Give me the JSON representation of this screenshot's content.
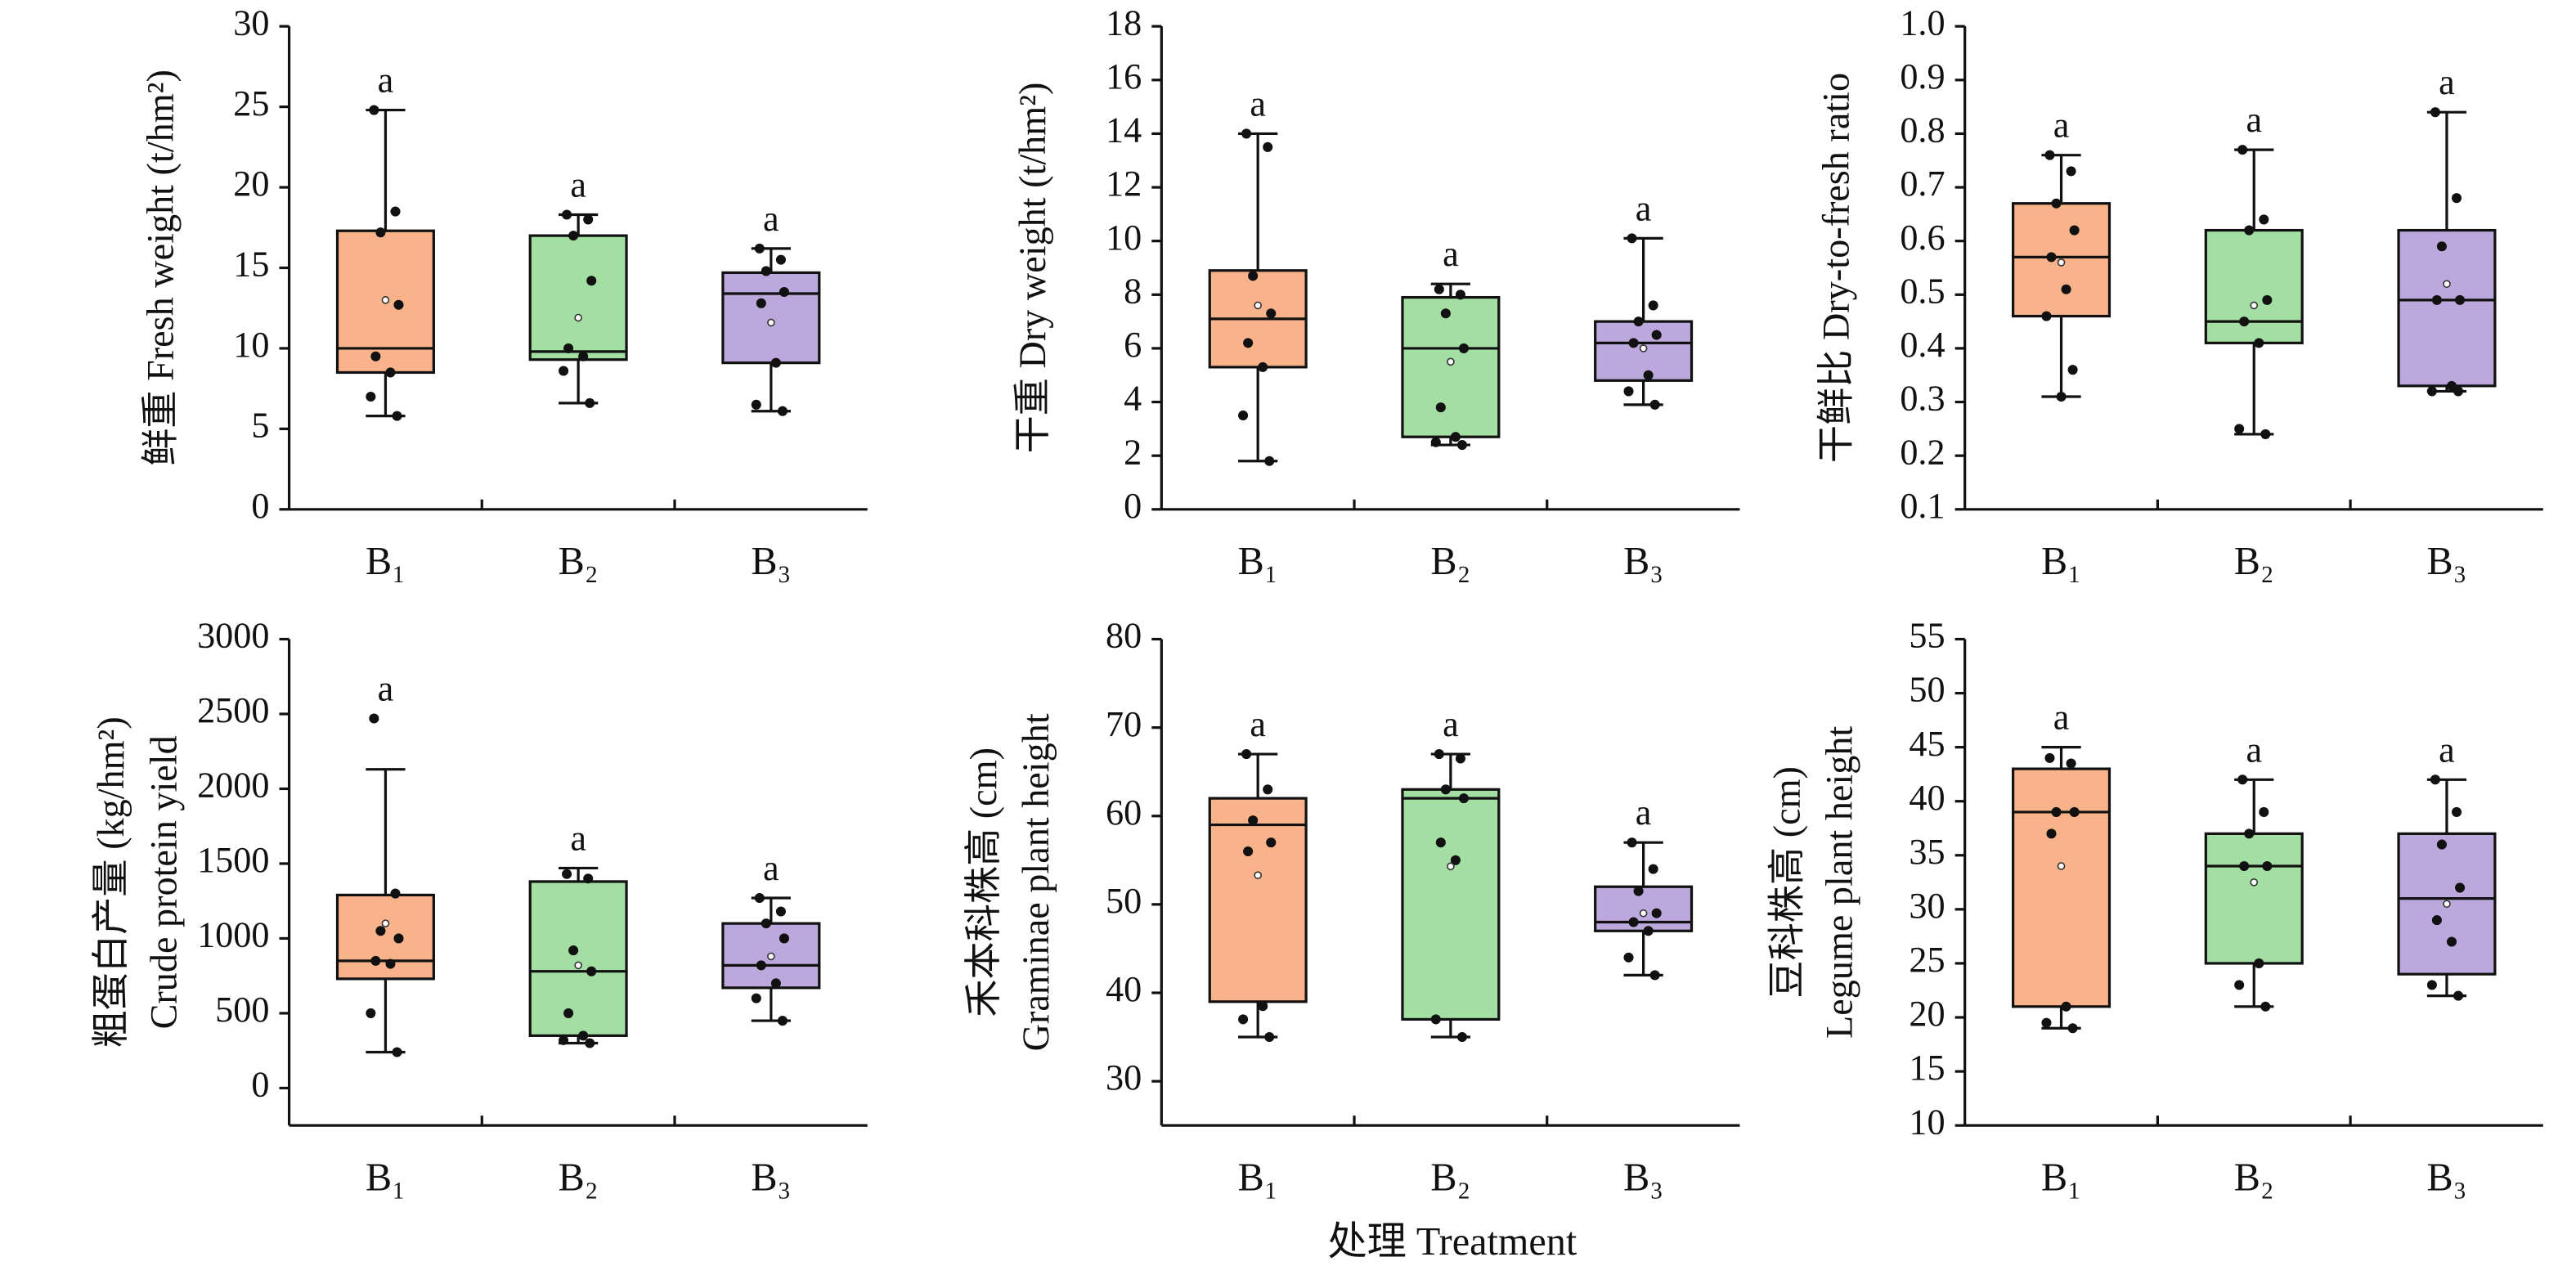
{
  "xlabel": "处理 Treatment",
  "chart_data": [
    {
      "type": "box",
      "ylabel": [
        "鲜重 Fresh weight (t/hm²)"
      ],
      "categories": [
        "B₁",
        "B₂",
        "B₃"
      ],
      "colors": [
        "#f9b38b",
        "#a3dea3",
        "#bca8dc"
      ],
      "ylim": [
        0,
        30
      ],
      "yticks": [
        0,
        5,
        10,
        15,
        20,
        25,
        30
      ],
      "boxes": [
        {
          "min": 5.8,
          "q1": 8.5,
          "median": 10,
          "q3": 17.3,
          "max": 24.8,
          "mean": 13,
          "points": [
            24.8,
            18.5,
            17.2,
            12.7,
            9.5,
            8.5,
            7,
            5.8
          ],
          "letter": "a"
        },
        {
          "min": 6.6,
          "q1": 9.3,
          "median": 9.8,
          "q3": 17,
          "max": 18.3,
          "mean": 11.9,
          "points": [
            18.3,
            18,
            17,
            14.2,
            10,
            9.5,
            8.6,
            6.6
          ],
          "letter": "a"
        },
        {
          "min": 6.1,
          "q1": 9.1,
          "median": 13.4,
          "q3": 14.7,
          "max": 16.2,
          "mean": 11.6,
          "points": [
            16.2,
            15.5,
            14.8,
            13.5,
            12.8,
            9.1,
            6.5,
            6.1
          ],
          "letter": "a"
        }
      ]
    },
    {
      "type": "box",
      "ylabel": [
        "干重 Dry weight (t/hm²)"
      ],
      "categories": [
        "B₁",
        "B₂",
        "B₃"
      ],
      "colors": [
        "#f9b38b",
        "#a3dea3",
        "#bca8dc"
      ],
      "ylim": [
        0,
        18
      ],
      "yticks": [
        0,
        2,
        4,
        6,
        8,
        10,
        12,
        14,
        16,
        18
      ],
      "boxes": [
        {
          "min": 1.8,
          "q1": 5.3,
          "median": 7.1,
          "q3": 8.9,
          "max": 14,
          "mean": 7.6,
          "points": [
            14,
            13.5,
            8.7,
            7.3,
            6.2,
            5.3,
            3.5,
            1.8
          ],
          "letter": "a"
        },
        {
          "min": 2.4,
          "q1": 2.7,
          "median": 6,
          "q3": 7.9,
          "max": 8.4,
          "mean": 5.5,
          "points": [
            8.2,
            8,
            7.3,
            6,
            3.8,
            2.7,
            2.5,
            2.4
          ],
          "letter": "a"
        },
        {
          "min": 3.9,
          "q1": 4.8,
          "median": 6.2,
          "q3": 7,
          "max": 10.1,
          "mean": 6,
          "points": [
            10.1,
            7.6,
            7,
            6.5,
            6.2,
            5,
            4.4,
            3.9
          ],
          "letter": "a"
        }
      ]
    },
    {
      "type": "box",
      "ylabel": [
        "干鲜比 Dry-to-fresh ratio"
      ],
      "categories": [
        "B₁",
        "B₂",
        "B₃"
      ],
      "colors": [
        "#f9b38b",
        "#a3dea3",
        "#bca8dc"
      ],
      "ylim": [
        0.1,
        1
      ],
      "yticks": [
        0.1,
        0.2,
        0.3,
        0.4,
        0.5,
        0.6,
        0.7,
        0.8,
        0.9,
        {
          "value": 1,
          "label": "1.0"
        }
      ],
      "boxes": [
        {
          "min": 0.31,
          "q1": 0.46,
          "median": 0.57,
          "q3": 0.67,
          "max": 0.76,
          "mean": 0.56,
          "points": [
            0.76,
            0.73,
            0.67,
            0.62,
            0.57,
            0.51,
            0.46,
            0.36,
            0.31
          ],
          "letter": "a"
        },
        {
          "min": 0.24,
          "q1": 0.41,
          "median": 0.45,
          "q3": 0.62,
          "max": 0.77,
          "mean": 0.48,
          "points": [
            0.77,
            0.64,
            0.62,
            0.49,
            0.45,
            0.41,
            0.25,
            0.24
          ],
          "letter": "a"
        },
        {
          "min": 0.32,
          "q1": 0.33,
          "median": 0.49,
          "q3": 0.62,
          "max": 0.84,
          "mean": 0.52,
          "points": [
            0.84,
            0.68,
            0.59,
            0.49,
            0.49,
            0.33,
            0.32,
            0.32
          ],
          "letter": "a"
        }
      ]
    },
    {
      "type": "box",
      "ylabel": [
        "粗蛋白产量 (kg/hm²)",
        "Crude protein yield"
      ],
      "categories": [
        "B₁",
        "B₂",
        "B₃"
      ],
      "colors": [
        "#f9b38b",
        "#a3dea3",
        "#bca8dc"
      ],
      "ylim": [
        -250,
        3000
      ],
      "yticks": [
        0,
        500,
        1000,
        1500,
        2000,
        2500,
        3000
      ],
      "boxes": [
        {
          "min": 240,
          "q1": 730,
          "median": 850,
          "q3": 1290,
          "max": 2130,
          "mean": 1100,
          "points": [
            2470,
            1300,
            1050,
            1000,
            850,
            830,
            500,
            240
          ],
          "letter": "a"
        },
        {
          "min": 300,
          "q1": 350,
          "median": 780,
          "q3": 1380,
          "max": 1470,
          "mean": 820,
          "points": [
            1430,
            1400,
            920,
            780,
            500,
            350,
            320,
            300
          ],
          "letter": "a"
        },
        {
          "min": 450,
          "q1": 670,
          "median": 820,
          "q3": 1100,
          "max": 1270,
          "mean": 880,
          "points": [
            1270,
            1180,
            1100,
            1000,
            820,
            700,
            600,
            450
          ],
          "letter": "a"
        }
      ]
    },
    {
      "type": "box",
      "ylabel": [
        "禾本科株高 (cm)",
        "Graminae plant height"
      ],
      "categories": [
        "B₁",
        "B₂",
        "B₃"
      ],
      "colors": [
        "#f9b38b",
        "#a3dea3",
        "#bca8dc"
      ],
      "ylim": [
        25,
        80
      ],
      "yticks": [
        30,
        40,
        50,
        60,
        70,
        80
      ],
      "boxes": [
        {
          "min": 35,
          "q1": 39,
          "median": 59,
          "q3": 62,
          "max": 67,
          "mean": 53.3,
          "points": [
            67,
            63,
            59.5,
            57,
            56,
            38.5,
            37,
            35
          ],
          "letter": "a"
        },
        {
          "min": 35,
          "q1": 37,
          "median": 62,
          "q3": 63,
          "max": 67,
          "mean": 54.3,
          "points": [
            67,
            66.5,
            63,
            62,
            57,
            55,
            37,
            35
          ],
          "letter": "a"
        },
        {
          "min": 42,
          "q1": 47,
          "median": 48,
          "q3": 52,
          "max": 57,
          "mean": 49,
          "points": [
            57,
            54,
            51.5,
            49,
            48,
            47,
            44,
            42
          ],
          "letter": "a"
        }
      ]
    },
    {
      "type": "box",
      "ylabel": [
        "豆科株高 (cm)",
        "Legume plant height"
      ],
      "categories": [
        "B₁",
        "B₂",
        "B₃"
      ],
      "colors": [
        "#f9b38b",
        "#a3dea3",
        "#bca8dc"
      ],
      "ylim": [
        10,
        55
      ],
      "yticks": [
        10,
        15,
        20,
        25,
        30,
        35,
        40,
        45,
        50,
        55
      ],
      "boxes": [
        {
          "min": 19,
          "q1": 21,
          "median": 39,
          "q3": 43,
          "max": 45,
          "mean": 34,
          "points": [
            44,
            43.5,
            39,
            39,
            37,
            21,
            19.5,
            19
          ],
          "letter": "a"
        },
        {
          "min": 21,
          "q1": 25,
          "median": 34,
          "q3": 37,
          "max": 42,
          "mean": 32.5,
          "points": [
            42,
            39,
            37,
            34,
            34,
            25,
            23,
            21
          ],
          "letter": "a"
        },
        {
          "min": 22,
          "q1": 24,
          "median": 31,
          "q3": 37,
          "max": 42,
          "mean": 30.5,
          "points": [
            42,
            39,
            36,
            32,
            29,
            27,
            23,
            22
          ],
          "letter": "a"
        }
      ]
    }
  ]
}
